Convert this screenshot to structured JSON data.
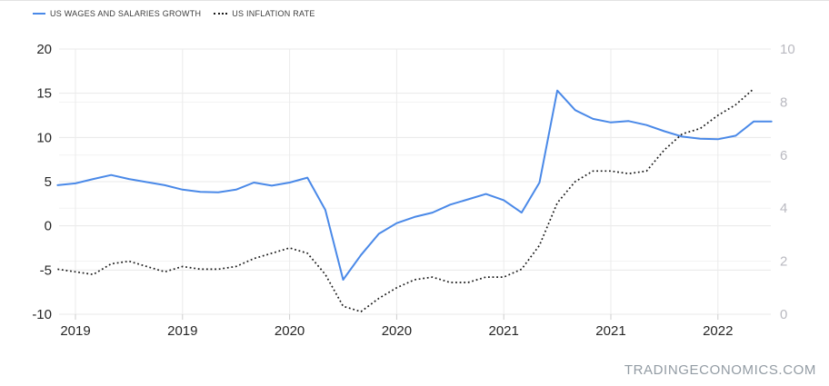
{
  "page": {
    "watermark": "TRADINGECONOMICS.COM"
  },
  "legend": {
    "items": [
      {
        "label": "US WAGES AND SALARIES GROWTH",
        "marker": "line",
        "color": "#4a89e8"
      },
      {
        "label": "US INFLATION RATE",
        "marker": "dotted",
        "color": "#1a1a1a"
      }
    ]
  },
  "chart_data": {
    "type": "line",
    "title": "",
    "x_tick_labels": [
      "2019",
      "2019",
      "2020",
      "2020",
      "2021",
      "2021",
      "2022"
    ],
    "left_axis": {
      "ticks": [
        20,
        15,
        10,
        5,
        0,
        -5,
        -10
      ],
      "range": [
        -10,
        20
      ],
      "label_color": "#262626"
    },
    "right_axis": {
      "ticks": [
        10,
        8,
        6,
        4,
        2,
        0
      ],
      "range": [
        0,
        10
      ],
      "label_color": "#b9b9c0"
    },
    "grid": true,
    "legend_position": "top-left",
    "months": [
      "2018-12",
      "2019-01",
      "2019-02",
      "2019-03",
      "2019-04",
      "2019-05",
      "2019-06",
      "2019-07",
      "2019-08",
      "2019-09",
      "2019-10",
      "2019-11",
      "2019-12",
      "2020-01",
      "2020-02",
      "2020-03",
      "2020-04",
      "2020-05",
      "2020-06",
      "2020-07",
      "2020-08",
      "2020-09",
      "2020-10",
      "2020-11",
      "2020-12",
      "2021-01",
      "2021-02",
      "2021-03",
      "2021-04",
      "2021-05",
      "2021-06",
      "2021-07",
      "2021-08",
      "2021-09",
      "2021-10",
      "2021-11",
      "2021-12",
      "2022-01",
      "2022-02",
      "2022-03",
      "2022-04"
    ],
    "series": [
      {
        "name": "US WAGES AND SALARIES GROWTH",
        "axis": "left",
        "style": "solid",
        "color": "#4a89e8",
        "values": [
          4.6,
          4.8,
          5.3,
          5.75,
          5.3,
          4.95,
          4.6,
          4.1,
          3.85,
          3.8,
          4.1,
          4.9,
          4.55,
          4.9,
          5.45,
          1.8,
          -6.1,
          -3.3,
          -0.9,
          0.3,
          1.0,
          1.5,
          2.4,
          3.0,
          3.6,
          2.9,
          1.5,
          4.9,
          15.3,
          13.1,
          12.1,
          11.7,
          11.85,
          11.4,
          10.7,
          10.1,
          9.85,
          9.8,
          10.2,
          11.8,
          11.8
        ]
      },
      {
        "name": "US INFLATION RATE",
        "axis": "right",
        "style": "dotted",
        "color": "#1a1a1a",
        "values": [
          1.7,
          1.6,
          1.5,
          1.9,
          2.0,
          1.8,
          1.6,
          1.8,
          1.7,
          1.7,
          1.8,
          2.1,
          2.3,
          2.5,
          2.3,
          1.5,
          0.3,
          0.1,
          0.6,
          1.0,
          1.3,
          1.4,
          1.2,
          1.2,
          1.4,
          1.4,
          1.7,
          2.6,
          4.2,
          5.0,
          5.4,
          5.4,
          5.3,
          5.4,
          6.2,
          6.8,
          7.0,
          7.5,
          7.9,
          8.5,
          null
        ]
      }
    ]
  }
}
